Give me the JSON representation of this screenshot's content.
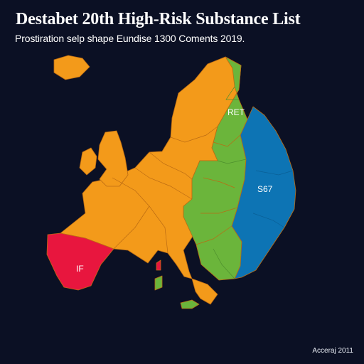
{
  "header": {
    "title": "Destabet 20th High-Risk Substance List",
    "subtitle": "Prostiration selp shape Eundise 1300 Coments 2019."
  },
  "map": {
    "labels": {
      "north": "RET",
      "east": "S67",
      "southwest": "IF"
    },
    "colors": {
      "background": "#0b1024",
      "orange": "#f39a1a",
      "green": "#6bb53b",
      "blue": "#0d74b4",
      "red": "#e8163e",
      "border": "#bb6b13"
    }
  },
  "footer": {
    "credit": "Acceraj 2011"
  }
}
